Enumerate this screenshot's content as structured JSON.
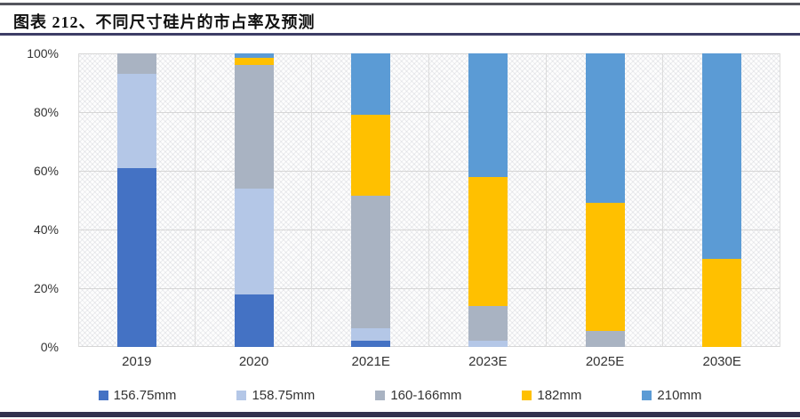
{
  "header": {
    "title": "图表 212、不同尺寸硅片的市占率及预测"
  },
  "colors": {
    "top_rule": "#55565e",
    "title_rule": "#3d3d66",
    "bottom_rule": "#31314e",
    "gridline": "#d6d6d6"
  },
  "chart_data": {
    "type": "bar",
    "subtype": "stacked-100-percent",
    "title": "图表 212、不同尺寸硅片的市占率及预测",
    "categories": [
      "2019",
      "2020",
      "2021E",
      "2023E",
      "2025E",
      "2030E"
    ],
    "series": [
      {
        "name": "156.75mm",
        "color": "#4472c4",
        "values": [
          61,
          18,
          2,
          0,
          0,
          0
        ]
      },
      {
        "name": "158.75mm",
        "color": "#b4c7e7",
        "values": [
          32,
          36,
          4.5,
          2,
          0,
          0
        ]
      },
      {
        "name": "160-166mm",
        "color": "#a9b3c2",
        "values": [
          7,
          42,
          45,
          12,
          5.5,
          0
        ]
      },
      {
        "name": "182mm",
        "color": "#ffc000",
        "values": [
          0,
          2.5,
          27.5,
          44,
          43.5,
          30
        ]
      },
      {
        "name": "210mm",
        "color": "#5b9bd5",
        "values": [
          0,
          1.5,
          21,
          42,
          51,
          70
        ]
      }
    ],
    "xlabel": "",
    "ylabel": "",
    "ylim": [
      0,
      100
    ],
    "y_ticks": [
      "0%",
      "20%",
      "40%",
      "60%",
      "80%",
      "100%"
    ],
    "grid": true,
    "legend_position": "bottom"
  }
}
